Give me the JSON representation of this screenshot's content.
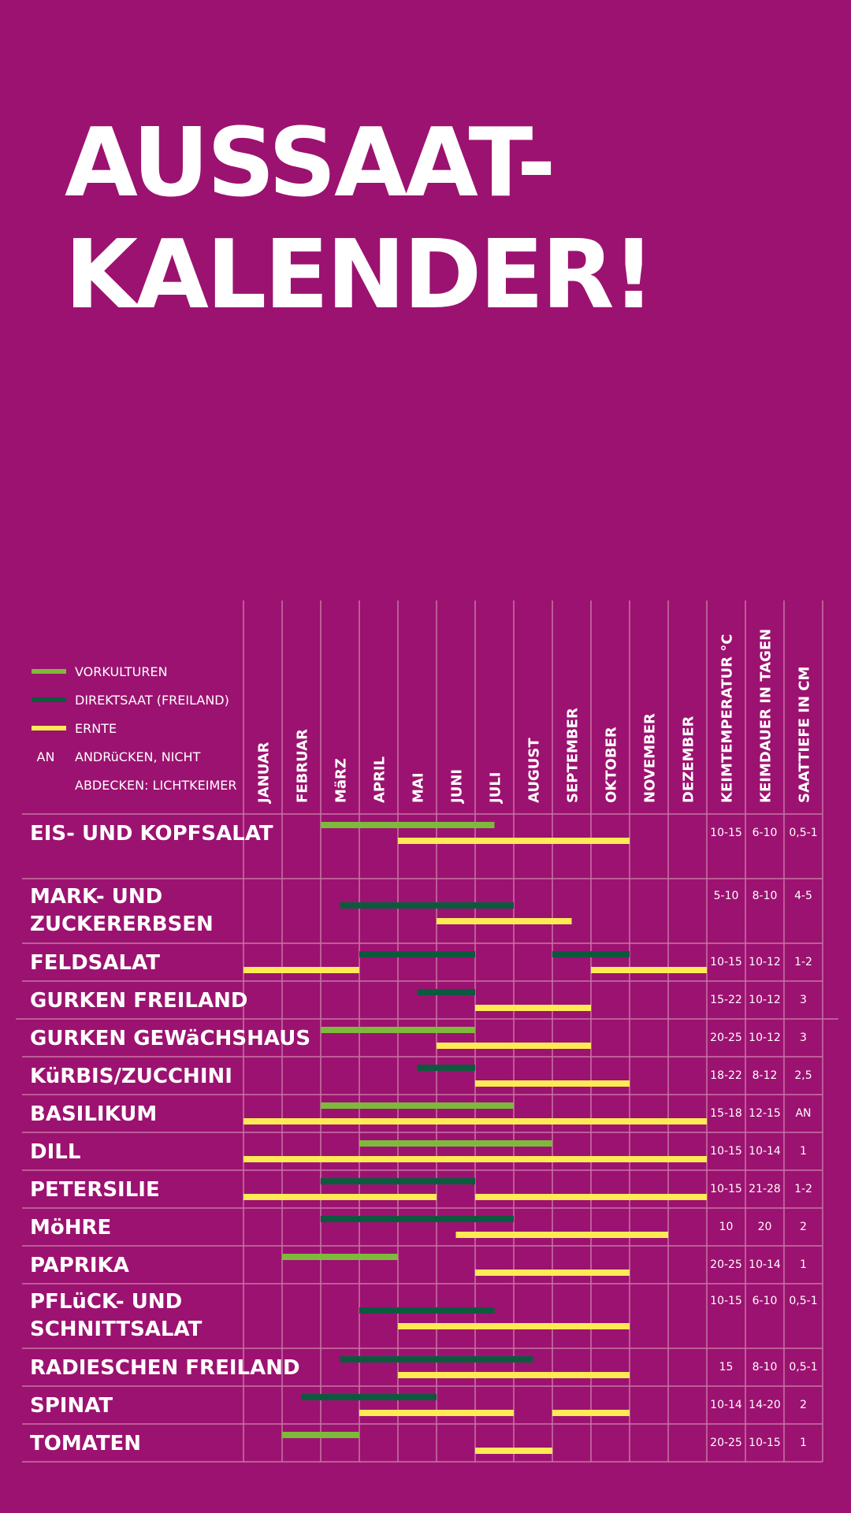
{
  "title": {
    "line1": "AUSSAAT-",
    "line2": "KALENDER!"
  },
  "colors": {
    "background": "#9c1270",
    "vorkulturen": "#7dba3b",
    "direktsaat": "#0c5a3e",
    "ernte": "#ffea55",
    "grid": "#c874a6",
    "text": "#ffffff"
  },
  "chart_data": {
    "type": "gantt",
    "title": "AUSSAAT-KALENDER!",
    "legend": [
      {
        "key": "vorkulturen",
        "label": "VORKULTUREN"
      },
      {
        "key": "direktsaat",
        "label": "DIREKTSAAT (FREILAND)"
      },
      {
        "key": "ernte",
        "label": "ERNTE"
      },
      {
        "key": "an",
        "symbol": "AN",
        "label": "ANDRüCKEN, NICHT",
        "label2": "ABDECKEN: LICHTKEIMER"
      }
    ],
    "months": [
      "JANUAR",
      "FEBRUAR",
      "MäRZ",
      "APRIL",
      "MAI",
      "JUNI",
      "JULI",
      "AUGUST",
      "SEPTEMBER",
      "OKTOBER",
      "NOVEMBER",
      "DEZEMBER"
    ],
    "columns": [
      "KEIMTEMPERATUR °C",
      "KEIMDAUER IN TAGEN",
      "SAATTIEFE IN CM"
    ],
    "rows": [
      {
        "name": [
          "EIS- UND KOPFSALAT"
        ],
        "temp": "10-15",
        "days": "6-10",
        "depth": "0,5-1",
        "bars": [
          {
            "type": "vorkulturen",
            "start": 2,
            "end": 6.5
          },
          {
            "type": "ernte",
            "start": 4,
            "end": 10
          }
        ]
      },
      {
        "name": [
          "MARK- UND",
          "ZUCKERERBSEN"
        ],
        "temp": "5-10",
        "days": "8-10",
        "depth": "4-5",
        "bars": [
          {
            "type": "direktsaat",
            "start": 2.5,
            "end": 7
          },
          {
            "type": "ernte",
            "start": 5,
            "end": 8.5
          }
        ]
      },
      {
        "name": [
          "FELDSALAT"
        ],
        "temp": "10-15",
        "days": "10-12",
        "depth": "1-2",
        "bars": [
          {
            "type": "direktsaat",
            "start": 3,
            "end": 6
          },
          {
            "type": "direktsaat",
            "start": 8,
            "end": 10
          },
          {
            "type": "ernte",
            "start": 0,
            "end": 3
          },
          {
            "type": "ernte",
            "start": 9,
            "end": 12
          }
        ]
      },
      {
        "name": [
          "GURKEN FREILAND"
        ],
        "temp": "15-22",
        "days": "10-12",
        "depth": "3",
        "bars": [
          {
            "type": "direktsaat",
            "start": 4.5,
            "end": 6
          },
          {
            "type": "ernte",
            "start": 6,
            "end": 9
          }
        ]
      },
      {
        "name": [
          "GURKEN GEWäCHSHAUS"
        ],
        "temp": "20-25",
        "days": "10-12",
        "depth": "3",
        "bars": [
          {
            "type": "vorkulturen",
            "start": 2,
            "end": 6
          },
          {
            "type": "ernte",
            "start": 5,
            "end": 9
          }
        ]
      },
      {
        "name": [
          "KüRBIS/ZUCCHINI"
        ],
        "temp": "18-22",
        "days": "8-12",
        "depth": "2,5",
        "bars": [
          {
            "type": "direktsaat",
            "start": 4.5,
            "end": 6
          },
          {
            "type": "ernte",
            "start": 6,
            "end": 10
          }
        ]
      },
      {
        "name": [
          "BASILIKUM"
        ],
        "temp": "15-18",
        "days": "12-15",
        "depth": "AN",
        "bars": [
          {
            "type": "vorkulturen",
            "start": 2,
            "end": 7
          },
          {
            "type": "ernte",
            "start": 0,
            "end": 12
          }
        ]
      },
      {
        "name": [
          "DILL"
        ],
        "temp": "10-15",
        "days": "10-14",
        "depth": "1",
        "bars": [
          {
            "type": "vorkulturen",
            "start": 3,
            "end": 8
          },
          {
            "type": "ernte",
            "start": 0,
            "end": 12
          }
        ]
      },
      {
        "name": [
          "PETERSILIE"
        ],
        "temp": "10-15",
        "days": "21-28",
        "depth": "1-2",
        "bars": [
          {
            "type": "direktsaat",
            "start": 2,
            "end": 6
          },
          {
            "type": "ernte",
            "start": 0,
            "end": 5
          },
          {
            "type": "ernte",
            "start": 6,
            "end": 12
          }
        ]
      },
      {
        "name": [
          "MöHRE"
        ],
        "temp": "10",
        "days": "20",
        "depth": "2",
        "bars": [
          {
            "type": "direktsaat",
            "start": 2,
            "end": 7
          },
          {
            "type": "ernte",
            "start": 5.5,
            "end": 11
          }
        ]
      },
      {
        "name": [
          "PAPRIKA"
        ],
        "temp": "20-25",
        "days": "10-14",
        "depth": "1",
        "bars": [
          {
            "type": "vorkulturen",
            "start": 1,
            "end": 4
          },
          {
            "type": "ernte",
            "start": 6,
            "end": 10
          }
        ]
      },
      {
        "name": [
          "PFLüCK- UND",
          "SCHNITTSALAT"
        ],
        "temp": "10-15",
        "days": "6-10",
        "depth": "0,5-1",
        "bars": [
          {
            "type": "direktsaat",
            "start": 3,
            "end": 6.5
          },
          {
            "type": "ernte",
            "start": 4,
            "end": 10
          }
        ]
      },
      {
        "name": [
          "RADIESCHEN FREILAND"
        ],
        "temp": "15",
        "days": "8-10",
        "depth": "0,5-1",
        "bars": [
          {
            "type": "direktsaat",
            "start": 2.5,
            "end": 7.5
          },
          {
            "type": "ernte",
            "start": 4,
            "end": 10
          }
        ]
      },
      {
        "name": [
          "SPINAT"
        ],
        "temp": "10-14",
        "days": "14-20",
        "depth": "2",
        "bars": [
          {
            "type": "direktsaat",
            "start": 1.5,
            "end": 5
          },
          {
            "type": "ernte",
            "start": 3,
            "end": 7
          },
          {
            "type": "ernte",
            "start": 8,
            "end": 10
          }
        ]
      },
      {
        "name": [
          "TOMATEN"
        ],
        "temp": "20-25",
        "days": "10-15",
        "depth": "1",
        "bars": [
          {
            "type": "vorkulturen",
            "start": 1,
            "end": 3
          },
          {
            "type": "ernte",
            "start": 6,
            "end": 8
          }
        ]
      }
    ]
  }
}
